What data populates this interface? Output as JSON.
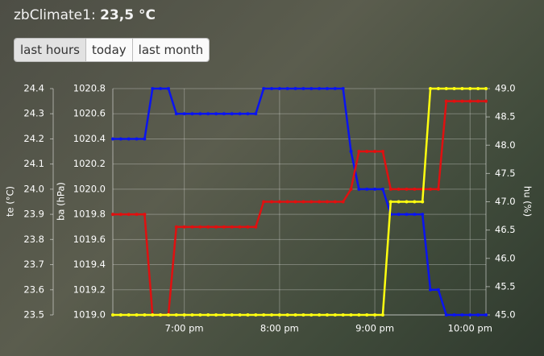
{
  "header": {
    "name": "zbClimate1:",
    "value": "23,5 °C"
  },
  "buttons": [
    "last hours",
    "today",
    "last month"
  ],
  "chart_data": {
    "type": "line",
    "ylabel": "te (°C)",
    "y3label": "ba (hPa)",
    "y2label": "hu (%)",
    "x": [
      1095,
      1100,
      1105,
      1110,
      1115,
      1120,
      1125,
      1130,
      1135,
      1140,
      1145,
      1150,
      1155,
      1160,
      1165,
      1170,
      1175,
      1180,
      1185,
      1190,
      1195,
      1200,
      1205,
      1210,
      1215,
      1220,
      1225,
      1230,
      1235,
      1240,
      1245,
      1250,
      1255,
      1260,
      1265,
      1270,
      1275,
      1280,
      1285,
      1290,
      1295,
      1300,
      1305,
      1310,
      1315,
      1320,
      1325,
      1330
    ],
    "xlim": [
      1095,
      1330
    ],
    "xticks": [
      {
        "value": 1140,
        "label": "7:00 pm"
      },
      {
        "value": 1200,
        "label": "8:00 pm"
      },
      {
        "value": 1260,
        "label": "9:00 pm"
      },
      {
        "value": 1320,
        "label": "10:00 pm"
      }
    ],
    "ylim": [
      23.5,
      24.4
    ],
    "yticks": [
      23.5,
      23.6,
      23.7,
      23.8,
      23.9,
      {
        "value": 24,
        "label": "24.0"
      },
      24.1,
      24.2,
      24.3,
      24.4
    ],
    "y3lim": [
      1019,
      1020.8
    ],
    "y3ticks": [
      {
        "value": 1019,
        "label": "1019.0"
      },
      1019.2,
      1019.4,
      1019.6,
      1019.8,
      {
        "value": 1020,
        "label": "1020.0"
      },
      1020.2,
      1020.4,
      1020.6,
      1020.8
    ],
    "y2lim": [
      45,
      49
    ],
    "y2ticks": [
      {
        "value": 45,
        "label": "45.0"
      },
      45.5,
      {
        "value": 46,
        "label": "46.0"
      },
      46.5,
      {
        "value": 47,
        "label": "47.0"
      },
      47.5,
      {
        "value": 48,
        "label": "48.0"
      },
      48.5,
      {
        "value": 49,
        "label": "49.0"
      }
    ],
    "grid": true,
    "series": [
      {
        "axis": "y3",
        "color": "#0a14f0",
        "values": [
          1020.4,
          1020.4,
          1020.4,
          1020.4,
          1020.4,
          1020.8,
          1020.8,
          1020.8,
          1020.6,
          1020.6,
          1020.6,
          1020.6,
          1020.6,
          1020.6,
          1020.6,
          1020.6,
          1020.6,
          1020.6,
          1020.6,
          1020.8,
          1020.8,
          1020.8,
          1020.8,
          1020.8,
          1020.8,
          1020.8,
          1020.8,
          1020.8,
          1020.8,
          1020.8,
          1020.3,
          1020,
          1020,
          1020,
          1020,
          1019.8,
          1019.8,
          1019.8,
          1019.8,
          1019.8,
          1019.2,
          1019.2,
          1019,
          1019,
          1019,
          1019,
          1019,
          1019
        ]
      },
      {
        "axis": "y",
        "color": "#e01010",
        "values": [
          23.9,
          23.9,
          23.9,
          23.9,
          23.9,
          23.5,
          23.5,
          23.5,
          23.85,
          23.85,
          23.85,
          23.85,
          23.85,
          23.85,
          23.85,
          23.85,
          23.85,
          23.85,
          23.85,
          23.95,
          23.95,
          23.95,
          23.95,
          23.95,
          23.95,
          23.95,
          23.95,
          23.95,
          23.95,
          23.95,
          24,
          24.15,
          24.15,
          24.15,
          24.15,
          24,
          24,
          24,
          24,
          24,
          24,
          24,
          24.35,
          24.35,
          24.35,
          24.35,
          24.35,
          24.35
        ]
      },
      {
        "axis": "y2",
        "color": "#ffff10",
        "values": [
          45,
          45,
          45,
          45,
          45,
          45,
          45,
          45,
          45,
          45,
          45,
          45,
          45,
          45,
          45,
          45,
          45,
          45,
          45,
          45,
          45,
          45,
          45,
          45,
          45,
          45,
          45,
          45,
          45,
          45,
          45,
          45,
          45,
          45,
          45,
          47,
          47,
          47,
          47,
          47,
          49,
          49,
          49,
          49,
          49,
          49,
          49,
          49
        ]
      }
    ]
  }
}
